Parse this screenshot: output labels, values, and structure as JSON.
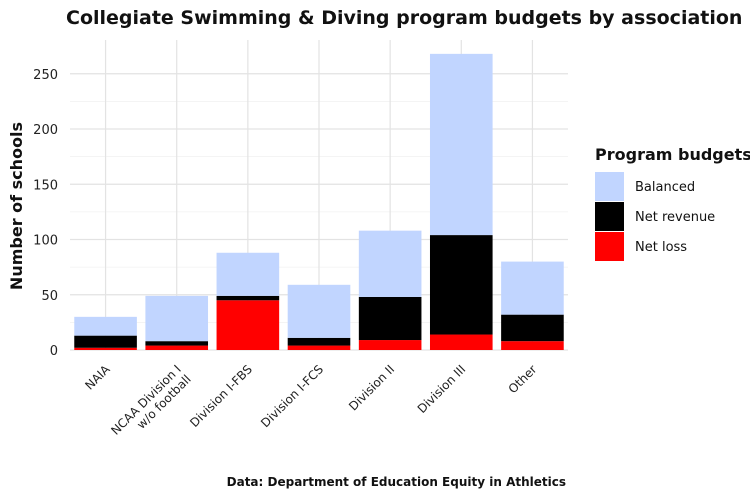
{
  "chart_data": {
    "type": "bar",
    "stacked": true,
    "title": "Collegiate Swimming & Diving program budgets by association",
    "caption": "Data: Department of Education Equity in Athletics",
    "xlabel": "",
    "ylabel": "Number of schools",
    "ylim": [
      0,
      270
    ],
    "yticks": [
      0,
      50,
      100,
      150,
      200,
      250
    ],
    "grid": true,
    "categories": [
      "NAIA",
      "NCAA Division I w/o football",
      "Division I-FBS",
      "Division I-FCS",
      "Division II",
      "Division III",
      "Other"
    ],
    "category_label_lines": [
      [
        "NAIA"
      ],
      [
        "NCAA Division I",
        "w/o football"
      ],
      [
        "Division I-FBS"
      ],
      [
        "Division I-FCS"
      ],
      [
        "Division II"
      ],
      [
        "Division III"
      ],
      [
        "Other"
      ]
    ],
    "series": [
      {
        "name": "Net loss",
        "color": "#ff0000",
        "values": [
          2,
          4,
          45,
          4,
          9,
          14,
          8
        ]
      },
      {
        "name": "Net revenue",
        "color": "#000000",
        "values": [
          11,
          4,
          4,
          7,
          39,
          90,
          24
        ]
      },
      {
        "name": "Balanced",
        "color": "#c1d5ff",
        "values": [
          17,
          41,
          39,
          48,
          60,
          164,
          48
        ]
      }
    ],
    "legend": {
      "title": "Program budgets",
      "position": "right",
      "order": [
        "Balanced",
        "Net revenue",
        "Net loss"
      ]
    }
  }
}
